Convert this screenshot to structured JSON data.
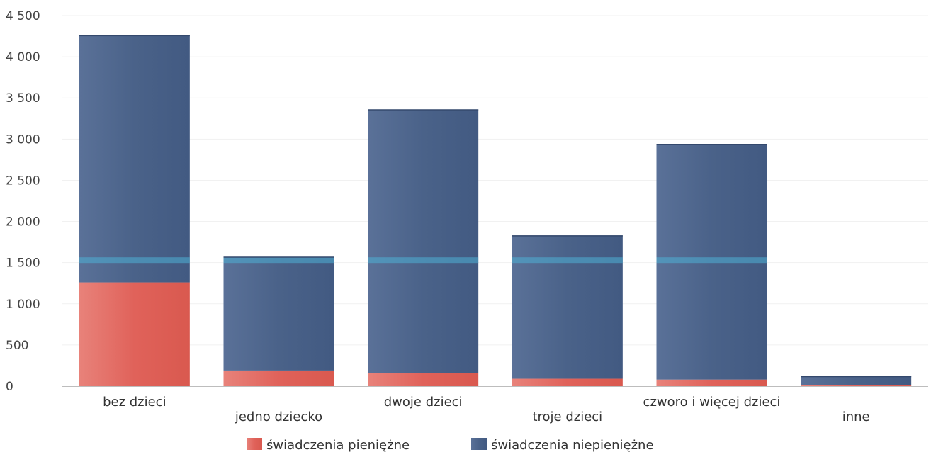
{
  "chart_data": {
    "type": "bar",
    "stacked": true,
    "title": "",
    "xlabel": "",
    "ylabel": "",
    "ylim": [
      0,
      4500
    ],
    "y_ticks": [
      0,
      500,
      1000,
      1500,
      2000,
      2500,
      3000,
      3500,
      4000,
      4500
    ],
    "y_tick_labels": [
      "0",
      "500",
      "1 000",
      "1 500",
      "2 000",
      "2 500",
      "3 000",
      "3 500",
      "4 000",
      "4 500"
    ],
    "grid": true,
    "legend_position": "bottom",
    "categories": [
      "bez dzieci",
      "jedno dziecko",
      "dwoje dzieci",
      "troje dzieci",
      "czworo i więcej dzieci",
      "inne"
    ],
    "series": [
      {
        "name": "świadczenia pieniężne",
        "color": "#e0625a",
        "values": [
          1260,
          190,
          160,
          90,
          80,
          10
        ]
      },
      {
        "name": "świadczenia niepieniężne",
        "color": "#4a6289",
        "values": [
          3000,
          1380,
          3200,
          1740,
          2860,
          110
        ]
      }
    ],
    "highlight_line_color": "#4fb0d6",
    "highlight_line_value": 1530
  }
}
